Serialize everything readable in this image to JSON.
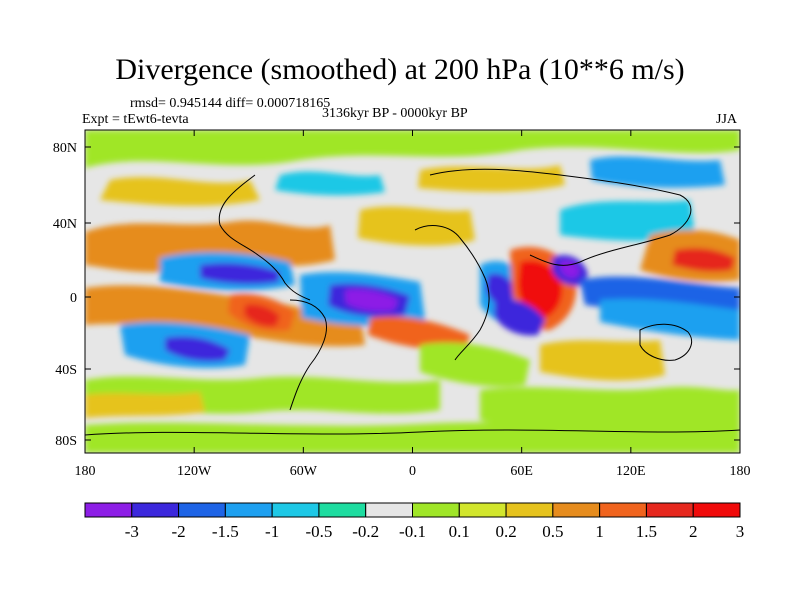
{
  "title": "Divergence (smoothed) at 200 hPa (10**6 m/s)",
  "stats": "rmsd= 0.945144 diff= 0.000718165",
  "experiment": "Expt = tEwt6-tevta",
  "period": "3136kyr BP - 0000kyr BP",
  "season": "JJA",
  "map": {
    "x_ticks": [
      "180",
      "120W",
      "60W",
      "0",
      "60E",
      "120E",
      "180"
    ],
    "y_ticks": [
      "80N",
      "40N",
      "0",
      "40S",
      "80S"
    ]
  },
  "colorbar": {
    "colors": [
      "#8d1ee6",
      "#3c28dc",
      "#1e64e6",
      "#1ea0f0",
      "#1ec8e6",
      "#1edca0",
      "#e6e6e6",
      "#a0e628",
      "#d2e62d",
      "#e6c31e",
      "#e68c1e",
      "#f0641e",
      "#e6281e",
      "#f00a0a"
    ],
    "labels": [
      "-3",
      "-2",
      "-1.5",
      "-1",
      "-0.5",
      "-0.2",
      "-0.1",
      "0.1",
      "0.2",
      "0.5",
      "1",
      "1.5",
      "2",
      "3"
    ]
  }
}
